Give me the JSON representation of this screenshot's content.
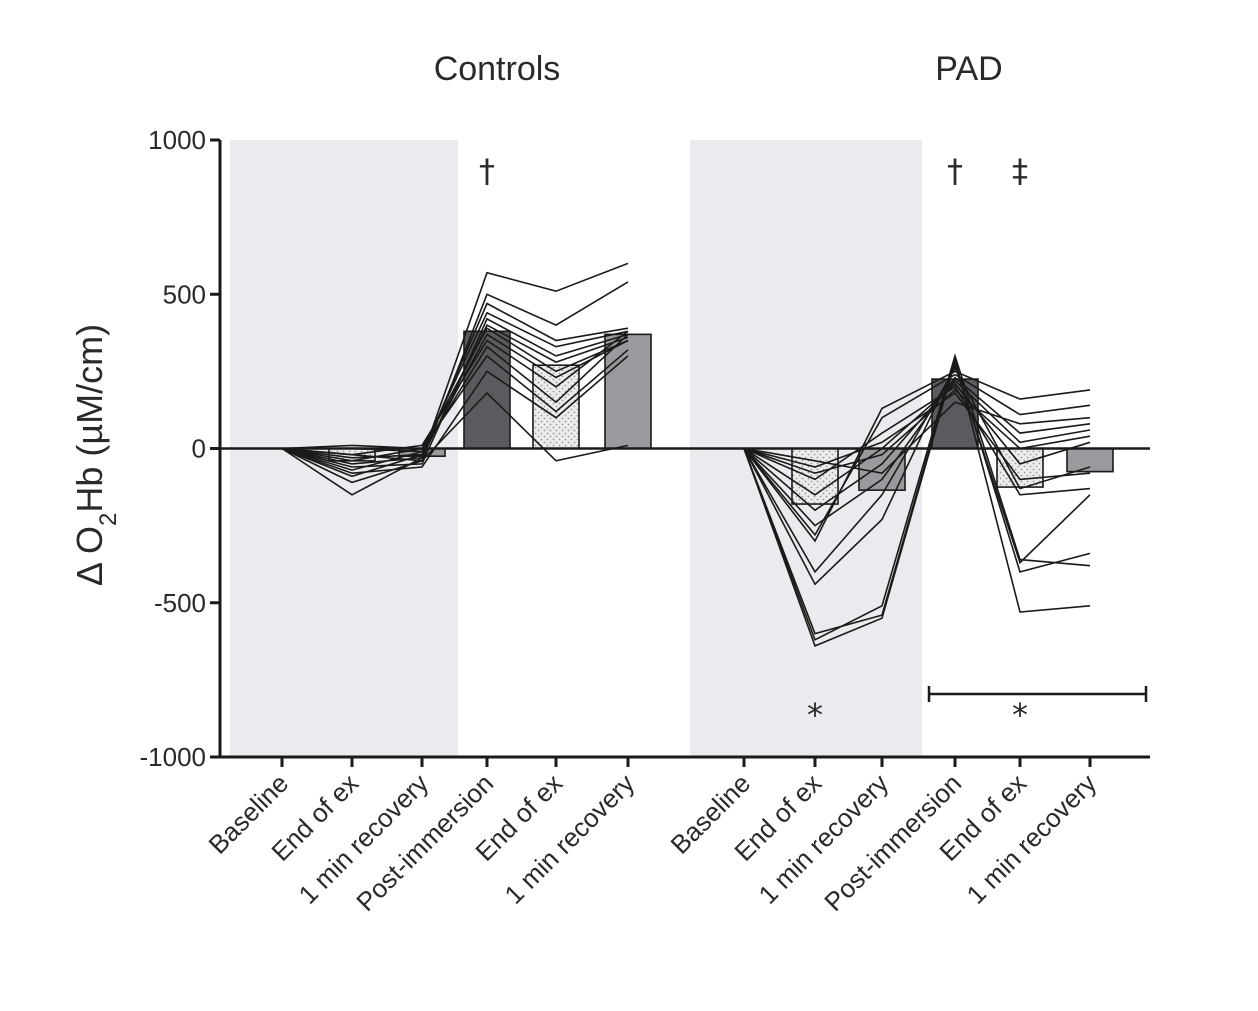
{
  "chart_data": {
    "type": "bar",
    "ylabel": "Δ O",
    "ylabel_sub": "2",
    "ylabel_rest": "Hb (µM/cm)",
    "ylim": [
      -1000,
      1000
    ],
    "yticks": [
      1000,
      500,
      0,
      -500,
      -1000
    ],
    "ytick_labels": [
      "1000",
      "500",
      "0",
      "-500",
      "-1000"
    ],
    "groups": [
      {
        "name": "Controls",
        "categories": [
          "Baseline",
          "End of ex",
          "1 min recovery",
          "Post-immersion",
          "End of ex",
          "1 min recovery"
        ],
        "bar_values": [
          0,
          -40,
          -25,
          380,
          270,
          370
        ],
        "bar_styles": [
          "none",
          "dotted",
          "mid",
          "dark",
          "dotted",
          "mid"
        ],
        "individual_lines": [
          [
            0,
            -150,
            -30,
            570,
            510,
            600
          ],
          [
            0,
            -110,
            -40,
            500,
            400,
            540
          ],
          [
            0,
            -90,
            -20,
            470,
            350,
            390
          ],
          [
            0,
            -70,
            -10,
            440,
            330,
            380
          ],
          [
            0,
            -60,
            -50,
            420,
            300,
            370
          ],
          [
            0,
            -50,
            -30,
            400,
            280,
            360
          ],
          [
            0,
            -40,
            0,
            390,
            250,
            350
          ],
          [
            0,
            -30,
            -20,
            370,
            230,
            350
          ],
          [
            0,
            -20,
            10,
            350,
            200,
            380
          ],
          [
            0,
            0,
            -10,
            330,
            150,
            370
          ],
          [
            0,
            10,
            0,
            300,
            120,
            320
          ],
          [
            0,
            -20,
            -40,
            180,
            -40,
            10
          ],
          [
            0,
            -80,
            -60,
            250,
            100,
            300
          ]
        ],
        "annotations": [
          {
            "symbol": "†",
            "category_index": 3
          }
        ]
      },
      {
        "name": "PAD",
        "categories": [
          "Baseline",
          "End of ex",
          "1 min recovery",
          "Post-immersion",
          "End of ex",
          "1 min recovery"
        ],
        "bar_values": [
          0,
          -180,
          -135,
          225,
          -125,
          -75
        ],
        "bar_styles": [
          "none",
          "dotted",
          "mid",
          "dark",
          "dotted",
          "mid"
        ],
        "individual_lines": [
          [
            0,
            -620,
            -510,
            300,
            -360,
            -380
          ],
          [
            0,
            -600,
            -540,
            290,
            -530,
            -510
          ],
          [
            0,
            -640,
            -550,
            280,
            -400,
            -340
          ],
          [
            0,
            -440,
            -230,
            270,
            -370,
            -150
          ],
          [
            0,
            -400,
            -150,
            260,
            -130,
            -60
          ],
          [
            0,
            -300,
            130,
            250,
            160,
            190
          ],
          [
            0,
            -280,
            100,
            240,
            110,
            140
          ],
          [
            0,
            -250,
            -100,
            230,
            50,
            80
          ],
          [
            0,
            -200,
            -50,
            220,
            20,
            60
          ],
          [
            0,
            -150,
            0,
            210,
            -50,
            20
          ],
          [
            0,
            -100,
            50,
            200,
            -150,
            -130
          ],
          [
            0,
            -80,
            -20,
            190,
            0,
            40
          ],
          [
            0,
            -60,
            20,
            180,
            -100,
            -80
          ],
          [
            0,
            -40,
            -80,
            150,
            80,
            100
          ]
        ],
        "annotations": [
          {
            "symbol": "†",
            "category_index": 3
          },
          {
            "symbol": "‡",
            "category_index": 4
          }
        ],
        "significance": [
          {
            "symbol": "*",
            "category_index": 1
          },
          {
            "symbol": "*",
            "category_index": 4,
            "bracket": [
              3,
              5
            ]
          }
        ]
      }
    ],
    "shaded_regions": "Baseline through 1 min recovery (first three categories) of each group shaded light grey",
    "colors": {
      "shade": "#ebebef",
      "dark_bar": "#5b5b5f",
      "mid_bar": "#9a9a9e",
      "dotted_bar": "#e6e6e6",
      "line": "#1a1a1a",
      "text": "#2a2a2a"
    }
  }
}
